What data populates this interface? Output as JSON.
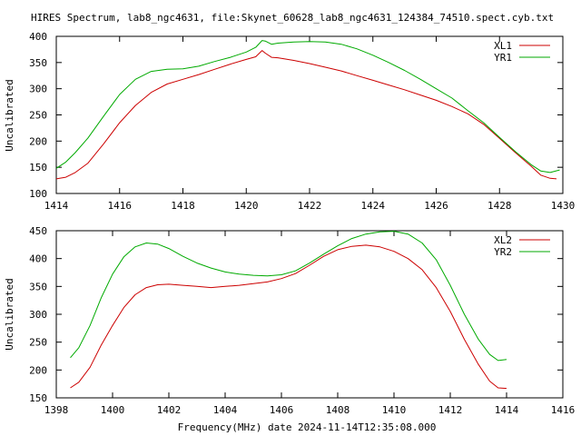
{
  "colors": {
    "XL": "#cc0000",
    "YR": "#00aa00",
    "axis": "#000000"
  },
  "chart_data": [
    {
      "type": "line",
      "title": "HIRES Spectrum, lab8_ngc4631, file:Skynet_60628_lab8_ngc4631_124384_74510.spect.cyb.txt",
      "xlabel": "",
      "ylabel": "Uncalibrated",
      "xlim": [
        1414,
        1430
      ],
      "ylim": [
        100,
        400
      ],
      "xticks": [
        "1414",
        "1416",
        "1418",
        "1420",
        "1422",
        "1424",
        "1426",
        "1428",
        "1430"
      ],
      "yticks": [
        "100",
        "150",
        "200",
        "250",
        "300",
        "350",
        "400"
      ],
      "legend_position": "top-right",
      "grid": false,
      "series": [
        {
          "name": "XL1",
          "color": "#cc0000",
          "points": [
            [
              1414.0,
              128
            ],
            [
              1414.3,
              131
            ],
            [
              1414.6,
              140
            ],
            [
              1415.0,
              158
            ],
            [
              1415.5,
              195
            ],
            [
              1416.0,
              235
            ],
            [
              1416.5,
              268
            ],
            [
              1417.0,
              293
            ],
            [
              1417.5,
              309
            ],
            [
              1418.0,
              318
            ],
            [
              1418.5,
              327
            ],
            [
              1419.0,
              337
            ],
            [
              1419.5,
              347
            ],
            [
              1420.0,
              356
            ],
            [
              1420.3,
              361
            ],
            [
              1420.5,
              373
            ],
            [
              1420.6,
              368
            ],
            [
              1420.8,
              360
            ],
            [
              1421.0,
              359
            ],
            [
              1421.5,
              354
            ],
            [
              1422.0,
              348
            ],
            [
              1422.5,
              341
            ],
            [
              1423.0,
              334
            ],
            [
              1423.5,
              325
            ],
            [
              1424.0,
              316
            ],
            [
              1424.5,
              307
            ],
            [
              1425.0,
              298
            ],
            [
              1425.5,
              288
            ],
            [
              1426.0,
              278
            ],
            [
              1426.5,
              266
            ],
            [
              1427.0,
              252
            ],
            [
              1427.5,
              232
            ],
            [
              1428.0,
              205
            ],
            [
              1428.5,
              178
            ],
            [
              1429.0,
              152
            ],
            [
              1429.3,
              135
            ],
            [
              1429.6,
              129
            ],
            [
              1429.8,
              128
            ]
          ]
        },
        {
          "name": "YR1",
          "color": "#00aa00",
          "points": [
            [
              1414.0,
              148
            ],
            [
              1414.3,
              160
            ],
            [
              1414.6,
              178
            ],
            [
              1415.0,
              206
            ],
            [
              1415.5,
              248
            ],
            [
              1416.0,
              289
            ],
            [
              1416.5,
              318
            ],
            [
              1417.0,
              333
            ],
            [
              1417.5,
              337
            ],
            [
              1418.0,
              338
            ],
            [
              1418.5,
              343
            ],
            [
              1419.0,
              352
            ],
            [
              1419.5,
              360
            ],
            [
              1420.0,
              370
            ],
            [
              1420.3,
              379
            ],
            [
              1420.5,
              392
            ],
            [
              1420.6,
              391
            ],
            [
              1420.8,
              385
            ],
            [
              1421.0,
              387
            ],
            [
              1421.5,
              389
            ],
            [
              1422.0,
              390
            ],
            [
              1422.5,
              389
            ],
            [
              1423.0,
              385
            ],
            [
              1423.5,
              376
            ],
            [
              1424.0,
              364
            ],
            [
              1424.5,
              350
            ],
            [
              1425.0,
              335
            ],
            [
              1425.5,
              318
            ],
            [
              1426.0,
              300
            ],
            [
              1426.5,
              282
            ],
            [
              1427.0,
              258
            ],
            [
              1427.5,
              235
            ],
            [
              1428.0,
              207
            ],
            [
              1428.5,
              180
            ],
            [
              1429.0,
              155
            ],
            [
              1429.3,
              143
            ],
            [
              1429.6,
              140
            ],
            [
              1429.9,
              145
            ]
          ]
        }
      ]
    },
    {
      "type": "line",
      "title": "",
      "xlabel": "Frequency(MHz) date 2024-11-14T12:35:08.000",
      "ylabel": "Uncalibrated",
      "xlim": [
        1398,
        1416
      ],
      "ylim": [
        150,
        450
      ],
      "xticks": [
        "1398",
        "1400",
        "1402",
        "1404",
        "1406",
        "1408",
        "1410",
        "1412",
        "1414",
        "1416"
      ],
      "yticks": [
        "150",
        "200",
        "250",
        "300",
        "350",
        "400",
        "450"
      ],
      "legend_position": "top-right",
      "grid": false,
      "series": [
        {
          "name": "XL2",
          "color": "#cc0000",
          "points": [
            [
              1398.5,
              168
            ],
            [
              1398.8,
              178
            ],
            [
              1399.2,
              205
            ],
            [
              1399.6,
              245
            ],
            [
              1400.0,
              280
            ],
            [
              1400.4,
              312
            ],
            [
              1400.8,
              335
            ],
            [
              1401.2,
              348
            ],
            [
              1401.6,
              353
            ],
            [
              1402.0,
              354
            ],
            [
              1402.5,
              352
            ],
            [
              1403.0,
              350
            ],
            [
              1403.5,
              348
            ],
            [
              1404.0,
              350
            ],
            [
              1404.5,
              352
            ],
            [
              1405.0,
              355
            ],
            [
              1405.5,
              358
            ],
            [
              1406.0,
              364
            ],
            [
              1406.5,
              373
            ],
            [
              1407.0,
              388
            ],
            [
              1407.5,
              404
            ],
            [
              1408.0,
              416
            ],
            [
              1408.5,
              422
            ],
            [
              1409.0,
              424
            ],
            [
              1409.5,
              421
            ],
            [
              1410.0,
              413
            ],
            [
              1410.5,
              400
            ],
            [
              1411.0,
              380
            ],
            [
              1411.5,
              348
            ],
            [
              1412.0,
              305
            ],
            [
              1412.5,
              255
            ],
            [
              1413.0,
              210
            ],
            [
              1413.4,
              180
            ],
            [
              1413.7,
              168
            ],
            [
              1414.0,
              167
            ]
          ]
        },
        {
          "name": "YR2",
          "color": "#00aa00",
          "points": [
            [
              1398.5,
              222
            ],
            [
              1398.8,
              240
            ],
            [
              1399.2,
              280
            ],
            [
              1399.6,
              330
            ],
            [
              1400.0,
              372
            ],
            [
              1400.4,
              403
            ],
            [
              1400.8,
              421
            ],
            [
              1401.2,
              428
            ],
            [
              1401.6,
              426
            ],
            [
              1402.0,
              418
            ],
            [
              1402.5,
              404
            ],
            [
              1403.0,
              392
            ],
            [
              1403.5,
              383
            ],
            [
              1404.0,
              376
            ],
            [
              1404.5,
              372
            ],
            [
              1405.0,
              370
            ],
            [
              1405.5,
              369
            ],
            [
              1406.0,
              371
            ],
            [
              1406.5,
              378
            ],
            [
              1407.0,
              392
            ],
            [
              1407.5,
              408
            ],
            [
              1408.0,
              423
            ],
            [
              1408.5,
              436
            ],
            [
              1409.0,
              444
            ],
            [
              1409.5,
              448
            ],
            [
              1410.0,
              449
            ],
            [
              1410.5,
              444
            ],
            [
              1411.0,
              428
            ],
            [
              1411.5,
              398
            ],
            [
              1412.0,
              352
            ],
            [
              1412.5,
              300
            ],
            [
              1413.0,
              255
            ],
            [
              1413.4,
              228
            ],
            [
              1413.7,
              217
            ],
            [
              1414.0,
              219
            ]
          ]
        }
      ]
    }
  ]
}
